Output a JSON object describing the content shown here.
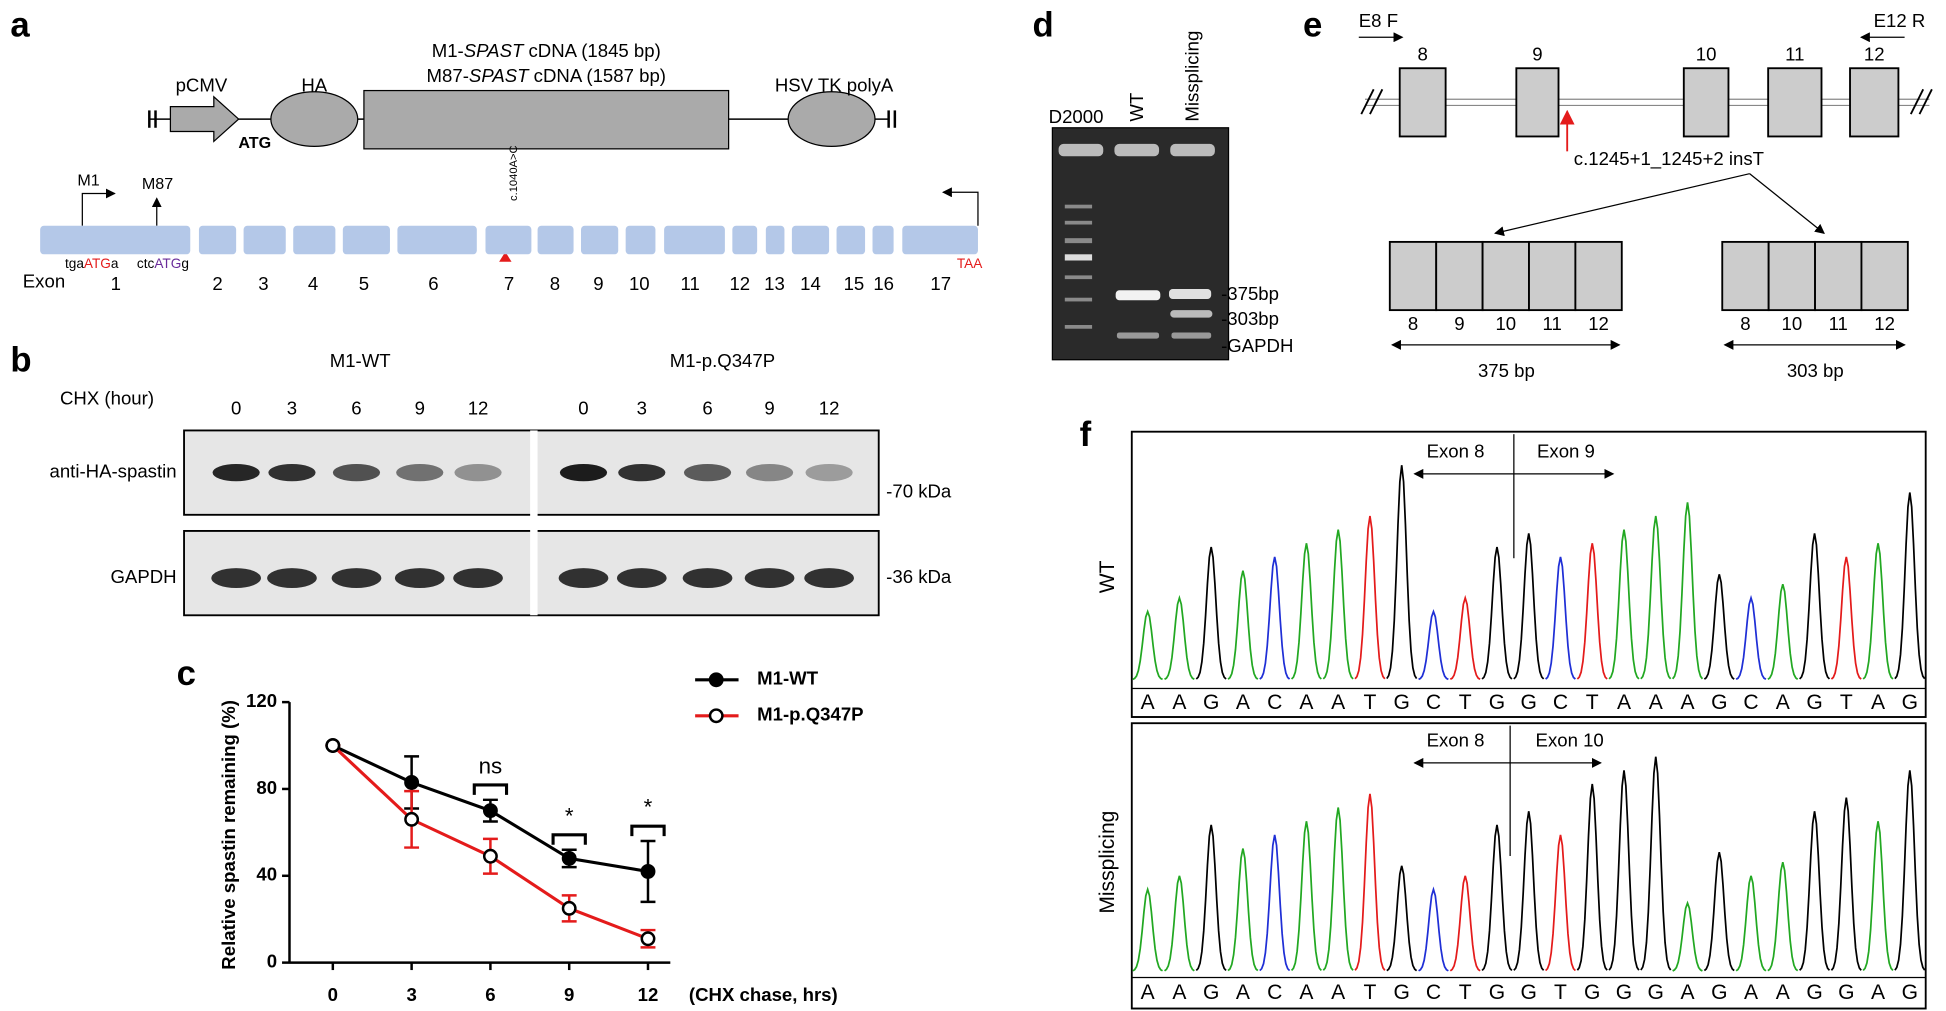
{
  "figure": {
    "panel_labels": [
      "a",
      "b",
      "c",
      "d",
      "e",
      "f"
    ],
    "panel_a": {
      "construct": {
        "promoter": "pCMV",
        "tag": "HA",
        "start_codon": "ATG",
        "cdna": [
          {
            "prefix": "M1-",
            "gene": "SPAST",
            "suffix": " cDNA (1845 bp)"
          },
          {
            "prefix": "M87-",
            "gene": "SPAST",
            "suffix": " cDNA (1587 bp)"
          }
        ],
        "polya": "HSV TK polyA"
      },
      "exon_label": "Exon",
      "exons": [
        "1",
        "2",
        "3",
        "4",
        "5",
        "6",
        "7",
        "8",
        "9",
        "10",
        "11",
        "12",
        "13",
        "14",
        "15",
        "16",
        "17"
      ],
      "start_sites": [
        {
          "name": "M1",
          "context": [
            "tga",
            "ATG",
            "a"
          ]
        },
        {
          "name": "M87",
          "context": [
            "ctc",
            "ATG",
            "g"
          ]
        }
      ],
      "mutation": "c.1040A>C",
      "stop_codon": "TAA"
    },
    "panel_b": {
      "groups": [
        "M1-WT",
        "M1-p.Q347P"
      ],
      "treatment": "CHX (hour)",
      "timepoints": [
        "0",
        "3",
        "6",
        "9",
        "12"
      ],
      "blots": [
        {
          "antibody": "anti-HA-spastin",
          "size": "-70 kDa"
        },
        {
          "antibody": "GAPDH",
          "size": "-36 kDa"
        }
      ]
    },
    "panel_d": {
      "lanes": [
        "D2000",
        "WT",
        "Missplicing"
      ],
      "bands": [
        "-375bp",
        "-303bp",
        "-GAPDH"
      ]
    },
    "panel_e": {
      "primers": [
        "E8 F",
        "E12 R"
      ],
      "exons": [
        "8",
        "9",
        "10",
        "11",
        "12"
      ],
      "mutation": "c.1245+1_1245+2 insT",
      "products": [
        {
          "exons": [
            "8",
            "9",
            "10",
            "11",
            "12"
          ],
          "size": "375 bp"
        },
        {
          "exons": [
            "8",
            "10",
            "11",
            "12"
          ],
          "size": "303 bp"
        }
      ]
    },
    "panel_f": {
      "base_colors": {
        "A": "#22a822",
        "C": "#1f2fd6",
        "G": "#000000",
        "T": "#e41b1b"
      },
      "traces": [
        {
          "name": "WT",
          "junction": [
            "Exon 8",
            "Exon 9"
          ],
          "sequence": [
            "A",
            "A",
            "G",
            "A",
            "C",
            "A",
            "A",
            "T",
            "G",
            "C",
            "T",
            "G",
            "G",
            "C",
            "T",
            "A",
            "A",
            "A",
            "G",
            "C",
            "A",
            "G",
            "T",
            "A",
            "G"
          ]
        },
        {
          "name": "Missplicing",
          "junction": [
            "Exon 8",
            "Exon 10"
          ],
          "sequence": [
            "A",
            "A",
            "G",
            "A",
            "C",
            "A",
            "A",
            "T",
            "G",
            "C",
            "T",
            "G",
            "G",
            "T",
            "G",
            "G",
            "G",
            "A",
            "G",
            "A",
            "A",
            "G",
            "G",
            "A",
            "G"
          ]
        }
      ]
    }
  },
  "chart_data": {
    "type": "line",
    "xlabel": "(CHX chase, hrs)",
    "ylabel": "Relative spastin remaining (%)",
    "x": [
      0,
      3,
      6,
      9,
      12
    ],
    "xlim": [
      -1.65,
      12.85
    ],
    "xticks": [
      0,
      3,
      6,
      9,
      12
    ],
    "ylim": [
      0,
      120
    ],
    "yticks": [
      0,
      40,
      80,
      120
    ],
    "series": [
      {
        "name": "M1-WT",
        "color": "#000000",
        "marker": "filled",
        "values": [
          100,
          83,
          70,
          48,
          42
        ],
        "errors": [
          0,
          12,
          5,
          4,
          14
        ]
      },
      {
        "name": "M1-p.Q347P",
        "color": "#e41b1b",
        "marker": "open",
        "values": [
          100,
          66,
          49,
          25,
          11
        ],
        "errors": [
          0,
          13,
          8,
          6,
          4
        ]
      }
    ],
    "annotations": [
      {
        "text": "ns",
        "x": 6
      },
      {
        "text": "*",
        "x": 9
      },
      {
        "text": "*",
        "x": 12
      }
    ]
  }
}
